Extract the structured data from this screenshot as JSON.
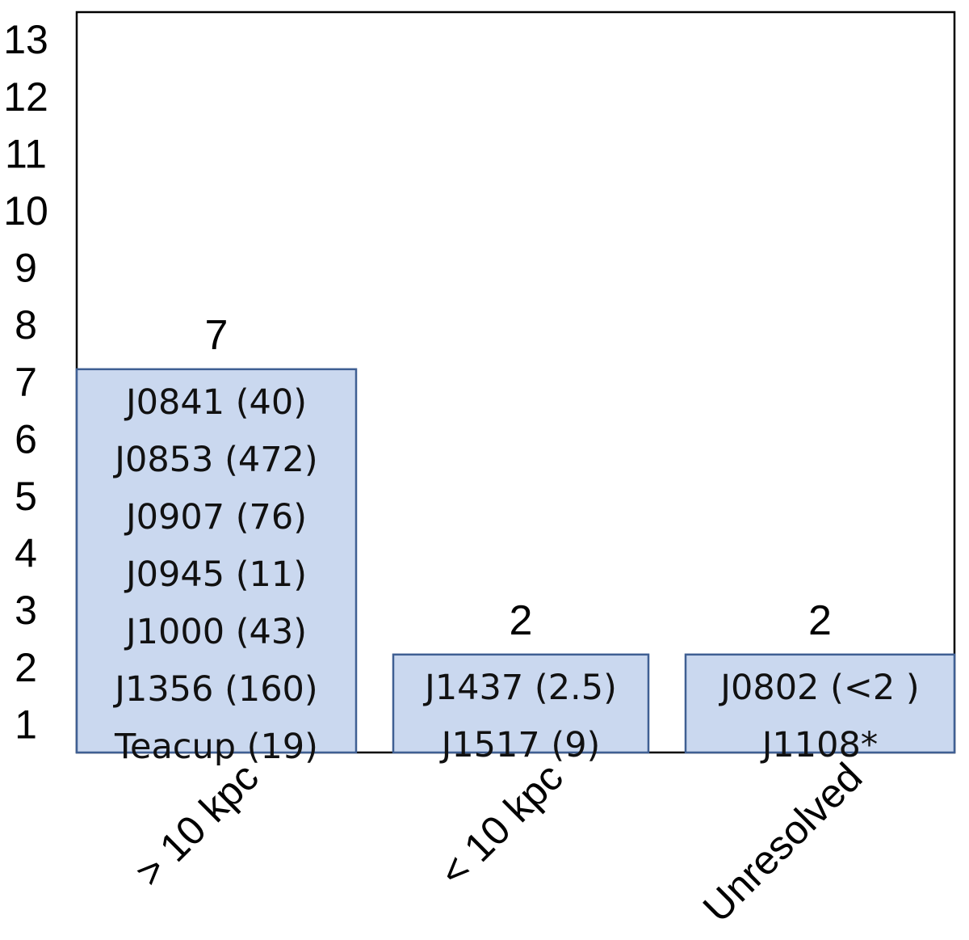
{
  "chart_data": {
    "type": "bar",
    "categories": [
      "> 10 kpc",
      "< 10 kpc",
      "Unresolved"
    ],
    "values": [
      7,
      2,
      2
    ],
    "data_labels": [
      "7",
      "2",
      "2"
    ],
    "ylim": [
      0,
      13
    ],
    "yticks": [
      1,
      2,
      3,
      4,
      5,
      6,
      7,
      8,
      9,
      10,
      11,
      12,
      13
    ],
    "grid": false,
    "bar_color": "#cad8ef",
    "bar_edge_color": "#3f5f93",
    "bar_items": [
      [
        "J0841 (40)",
        "J0853 (472)",
        "J0907 (76)",
        "J0945 (11)",
        "J1000 (43)",
        "J1356 (160)",
        "Teacup (19)"
      ],
      [
        "J1437 (2.5)",
        "J1517 (9)"
      ],
      [
        "J0802 (<2 )",
        "J1108*"
      ]
    ]
  }
}
